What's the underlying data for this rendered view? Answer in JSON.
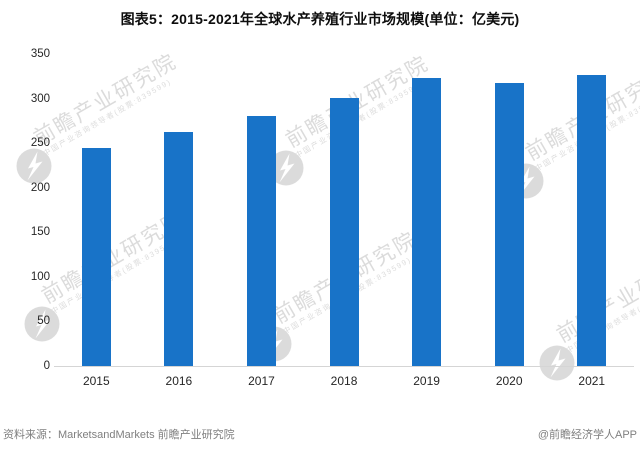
{
  "chart_data": {
    "type": "bar",
    "title": "图表5：2015-2021年全球水产养殖行业市场规模(单位：亿美元)",
    "categories": [
      "2015",
      "2016",
      "2017",
      "2018",
      "2019",
      "2020",
      "2021"
    ],
    "values": [
      245,
      262,
      281,
      301,
      323,
      317,
      326
    ],
    "xlabel": "",
    "ylabel": "",
    "unit": "亿美元",
    "ylim": [
      0,
      350
    ],
    "yticks": [
      350,
      300,
      250,
      200,
      150,
      100,
      50,
      0
    ],
    "grid": false,
    "legend": "none",
    "bar_color": "#1873C8",
    "axis_line_color": "#D5D5D5"
  },
  "footer": {
    "source_label": "资料来源：MarketsandMarkets  前瞻产业研究院",
    "credit_label": "@前瞻经济学人APP",
    "text_color": "#7F7F7F"
  },
  "watermark": {
    "brand_text": "前瞻产业研究院",
    "brand_subtext": "中国产业咨询领导者(股票:839599)",
    "logo_icon": "qianzhan-logo-icon"
  }
}
